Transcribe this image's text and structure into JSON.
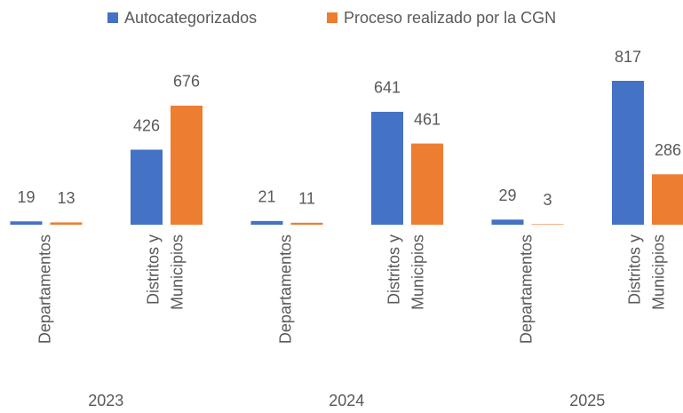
{
  "chart_data": {
    "type": "bar",
    "groups": [
      "2023",
      "2024",
      "2025"
    ],
    "categories": [
      [
        "Departamentos"
      ],
      [
        "Distritos y",
        "Municipios"
      ],
      [
        "Departamentos"
      ],
      [
        "Distritos y",
        "Municipios"
      ],
      [
        "Departamentos"
      ],
      [
        "Distritos y",
        "Municipios"
      ]
    ],
    "series": [
      {
        "name": "Autocategorizados",
        "color": "#4472c4",
        "values": [
          19,
          426,
          21,
          641,
          29,
          817
        ]
      },
      {
        "name": "Proceso realizado por la CGN",
        "color": "#ed7d31",
        "values": [
          13,
          676,
          11,
          461,
          3,
          286
        ]
      }
    ],
    "legend": "top"
  }
}
